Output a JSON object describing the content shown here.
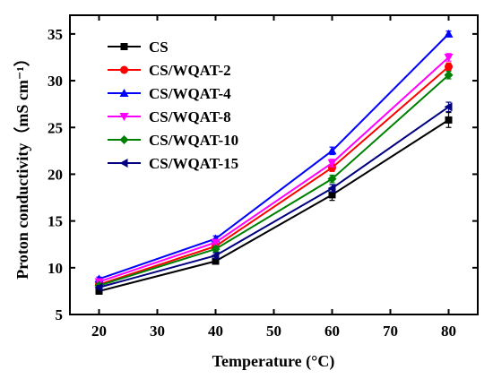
{
  "chart_data": {
    "type": "line",
    "xlabel": "Temperature (°C)",
    "ylabel": "Proton conductivity（mS cm⁻¹）",
    "xlim": [
      15,
      85
    ],
    "ylim": [
      5,
      37
    ],
    "xticks": [
      20,
      30,
      40,
      50,
      60,
      70,
      80
    ],
    "yticks": [
      5,
      10,
      15,
      20,
      25,
      30,
      35
    ],
    "grid": false,
    "legend_position": "top-left",
    "x": [
      20,
      40,
      60,
      80
    ],
    "series": [
      {
        "name": "CS",
        "color": "#000000",
        "marker": "square",
        "values": [
          7.5,
          10.7,
          17.8,
          25.8
        ],
        "errors": [
          0.3,
          0.3,
          0.6,
          0.8
        ]
      },
      {
        "name": "CS/WQAT-2",
        "color": "#ff0000",
        "marker": "circle",
        "values": [
          8.2,
          12.3,
          20.7,
          31.5
        ],
        "errors": [
          0.2,
          0.3,
          0.4,
          0.4
        ]
      },
      {
        "name": "CS/WQAT-4",
        "color": "#0000ff",
        "marker": "triangle-up",
        "values": [
          8.8,
          13.1,
          22.5,
          35.0
        ],
        "errors": [
          0.2,
          0.3,
          0.4,
          0.3
        ]
      },
      {
        "name": "CS/WQAT-8",
        "color": "#ff00ff",
        "marker": "triangle-down",
        "values": [
          8.5,
          12.7,
          21.2,
          32.5
        ],
        "errors": [
          0.2,
          0.3,
          0.4,
          0.4
        ]
      },
      {
        "name": "CS/WQAT-10",
        "color": "#008000",
        "marker": "diamond",
        "values": [
          8.1,
          12.0,
          19.5,
          30.6
        ],
        "errors": [
          0.2,
          0.3,
          0.4,
          0.4
        ]
      },
      {
        "name": "CS/WQAT-15",
        "color": "#000080",
        "marker": "triangle-left",
        "values": [
          7.9,
          11.3,
          18.5,
          27.2
        ],
        "errors": [
          0.2,
          0.3,
          0.4,
          0.5
        ]
      }
    ]
  }
}
